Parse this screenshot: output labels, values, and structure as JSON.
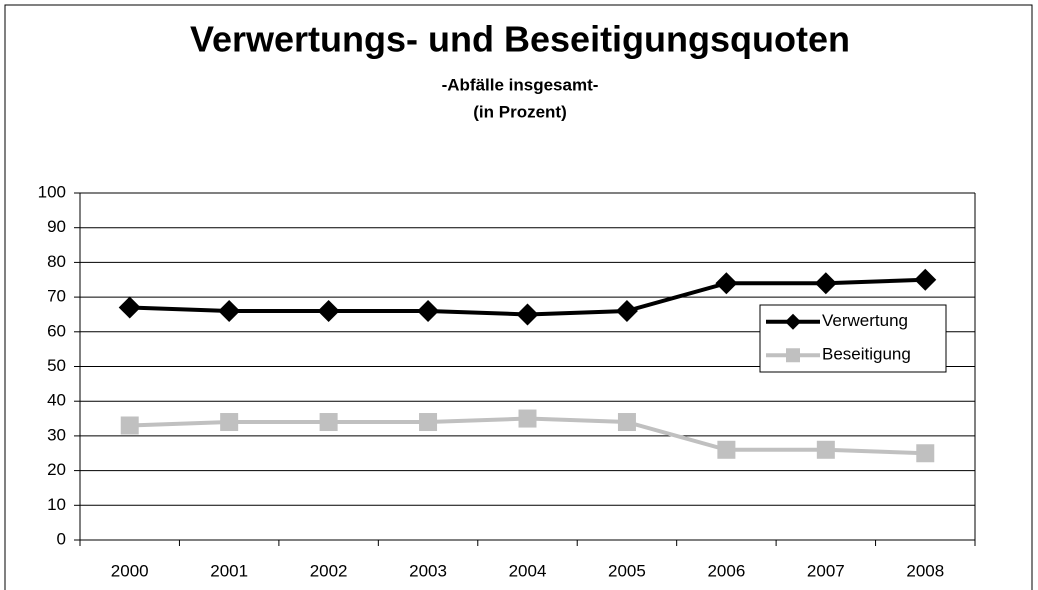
{
  "chart_data": {
    "type": "line",
    "title": "Verwertungs- und Beseitigungsquoten",
    "subtitle": [
      "-Abfälle insgesamt-",
      "(in Prozent)"
    ],
    "categories": [
      "2000",
      "2001",
      "2002",
      "2003",
      "2004",
      "2005",
      "2006",
      "2007",
      "2008"
    ],
    "series": [
      {
        "name": "Verwertung",
        "color": "#000000",
        "marker": "diamond",
        "values": [
          67,
          66,
          66,
          66,
          65,
          66,
          74,
          74,
          75
        ]
      },
      {
        "name": "Beseitigung",
        "color": "#c0c0c0",
        "marker": "square",
        "values": [
          33,
          34,
          34,
          34,
          35,
          34,
          26,
          26,
          25
        ]
      }
    ],
    "ylim": [
      0,
      100
    ],
    "yticks": [
      0,
      10,
      20,
      30,
      40,
      50,
      60,
      70,
      80,
      90,
      100
    ],
    "grid": true,
    "legend": "right"
  }
}
